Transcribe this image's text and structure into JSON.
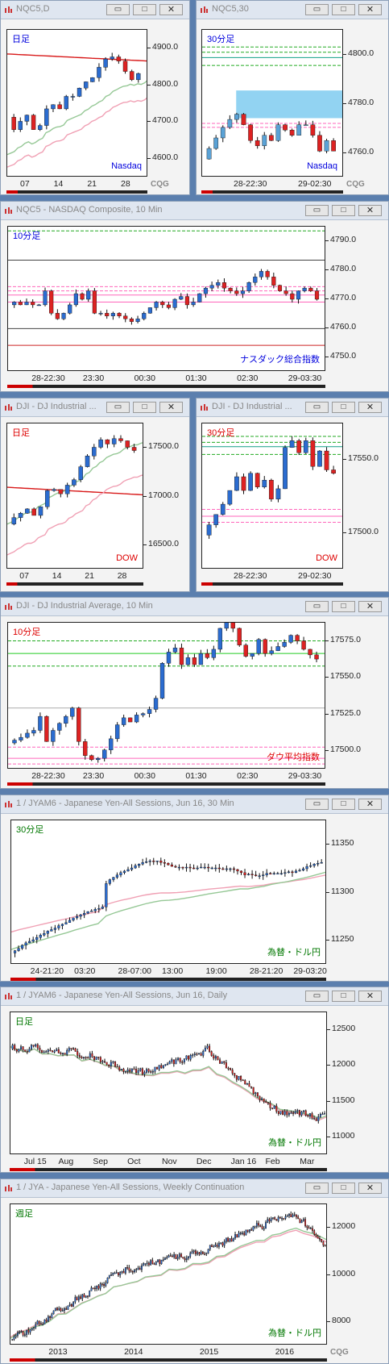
{
  "windows": [
    {
      "title": "NQC5,D",
      "period_label": "日足",
      "period_color": "#0000dd",
      "symbol_label": "Nasdaq",
      "symbol_color": "#0000dd",
      "y_ticks": [
        "4900.0",
        "4800.0",
        "4700.0",
        "4600.0"
      ],
      "x_ticks": [
        "07",
        "14",
        "21",
        "28"
      ],
      "logo": "CQG",
      "chart_data": {
        "type": "candlestick",
        "timeframe": "daily",
        "yrange": [
          4565,
          4920
        ],
        "count": 20,
        "base": 4710,
        "deltas": [
          -30,
          20,
          15,
          -35,
          10,
          40,
          10,
          -10,
          30,
          0,
          20,
          15,
          10,
          25,
          20,
          5,
          -10,
          -25,
          -20,
          15
        ],
        "ma_lines": [
          {
            "color": "#d81818",
            "values": [
              4862,
              4845
            ]
          },
          {
            "color": "#96c896",
            "values": [
              4600,
              4795
            ]
          },
          {
            "color": "#f0a0b4",
            "values": [
              4560,
              4740
            ]
          }
        ]
      }
    },
    {
      "title": "NQC5,30",
      "period_label": "30分足",
      "period_color": "#0000dd",
      "symbol_label": "Nasdaq",
      "symbol_color": "#0000dd",
      "y_ticks": [
        "4800.0",
        "4780.0",
        "4760.0"
      ],
      "x_ticks": [
        "28-22:30",
        "29-02:30"
      ],
      "logo": "CQG",
      "chart_data": {
        "type": "candlestick",
        "timeframe": "30min",
        "yrange": [
          4752,
          4808
        ],
        "count": 19,
        "base": 4759,
        "deltas": [
          4,
          4,
          4,
          3,
          2,
          -4,
          -6,
          -2,
          4,
          -2,
          6,
          -2,
          -2,
          4,
          0,
          -4,
          -6,
          4,
          -4
        ],
        "hlines": [
          {
            "color": "#22aa22",
            "dash": true,
            "values": [
              4801.5,
              4799.5,
              4794.5
            ]
          },
          {
            "color": "#13a088",
            "dash": false,
            "values": [
              4797.5
            ]
          },
          {
            "color": "#ff66bb",
            "dash": true,
            "values": [
              4772.5,
              4771
            ]
          }
        ],
        "highlight": {
          "color": "#7fcbf0",
          "from": [
            0.24,
            1.0
          ],
          "yrange": [
            4774.5,
            4785
          ]
        }
      }
    },
    {
      "title": "NQC5 - NASDAQ Composite, 10 Min",
      "period_label": "10分足",
      "period_color": "#0000dd",
      "symbol_label": "ナスダック総合指数",
      "symbol_color": "#0000dd",
      "y_ticks": [
        "4790.0",
        "4780.0",
        "4770.0",
        "4760.0",
        "4750.0"
      ],
      "x_ticks": [
        "28-22:30",
        "23:30",
        "00:30",
        "01:30",
        "02:30",
        "29-03:30"
      ],
      "chart_data": {
        "type": "candlestick",
        "timeframe": "10min",
        "yrange": [
          4745,
          4797
        ],
        "count": 50,
        "base": 4769,
        "deltas": [
          1,
          -1,
          1,
          -1,
          0,
          5,
          -8,
          -2,
          2,
          3,
          4,
          -2,
          3,
          -8,
          0,
          -1,
          1,
          -1,
          -1,
          -1,
          1,
          2,
          2,
          2,
          -1,
          -1,
          3,
          1,
          -3,
          1,
          3,
          2,
          1,
          1,
          -2,
          -1,
          -1,
          1,
          3,
          2,
          2,
          -2,
          -3,
          -2,
          -1,
          -2,
          3,
          1,
          -1,
          -3
        ],
        "hlines": [
          {
            "color": "#22aa22",
            "dash": true,
            "values": [
              4795.5
            ]
          },
          {
            "color": "#ff66bb",
            "dash": true,
            "values": [
              4775.5,
              4774
            ]
          },
          {
            "color": "#ff66bb",
            "dash": false,
            "values": [
              4772.5,
              4770
            ]
          },
          {
            "color": "#444444",
            "dash": false,
            "values": [
              4785,
              4760.5
            ]
          },
          {
            "color": "#cc2222",
            "dash": false,
            "values": [
              4754.5
            ]
          }
        ]
      }
    },
    {
      "title": "DJI - DJ Industrial ...",
      "period_label": "日足",
      "period_color": "#dd0000",
      "symbol_label": "DOW",
      "symbol_color": "#dd0000",
      "y_ticks": [
        "17500.0",
        "17000.0",
        "16500.0"
      ],
      "x_ticks": [
        "07",
        "14",
        "21",
        "28"
      ],
      "chart_data": {
        "type": "candlestick",
        "timeframe": "daily",
        "yrange": [
          16400,
          17750
        ],
        "count": 19,
        "base": 16820,
        "deltas": [
          60,
          40,
          40,
          -60,
          80,
          150,
          10,
          -40,
          80,
          50,
          120,
          100,
          80,
          70,
          -40,
          50,
          -20,
          -60,
          -30
        ],
        "ma_lines": [
          {
            "color": "#d81818",
            "values": [
              17160,
              17090
            ]
          },
          {
            "color": "#96c896",
            "values": [
              16800,
              17600
            ]
          },
          {
            "color": "#f0a0b4",
            "values": [
              16420,
              17200
            ]
          }
        ]
      }
    },
    {
      "title": "DJI - DJ Industrial ...",
      "period_label": "30分足",
      "period_color": "#dd0000",
      "symbol_label": "DOW",
      "symbol_color": "#dd0000",
      "y_ticks": [
        "17550.0",
        "17500.0"
      ],
      "x_ticks": [
        "28-22:30",
        "29-02:30"
      ],
      "chart_data": {
        "type": "candlestick",
        "timeframe": "30min",
        "yrange": [
          17425,
          17595
        ],
        "count": 19,
        "base": 17465,
        "deltas": [
          12,
          12,
          12,
          16,
          16,
          -16,
          20,
          -16,
          8,
          -22,
          12,
          48,
          8,
          -14,
          14,
          -30,
          18,
          -22,
          -4
        ],
        "hlines": [
          {
            "color": "#22aa22",
            "dash": true,
            "values": [
              17580,
              17573,
              17559
            ]
          },
          {
            "color": "#13a088",
            "dash": false,
            "values": [
              17568
            ]
          },
          {
            "color": "#ff66bb",
            "dash": true,
            "values": [
              17495,
              17480
            ]
          },
          {
            "color": "#ff66bb",
            "dash": false,
            "values": [
              17487
            ]
          }
        ]
      }
    },
    {
      "title": "DJI - DJ Industrial Average, 10 Min",
      "period_label": "10分足",
      "period_color": "#dd0000",
      "symbol_label": "ダウ平均指数",
      "symbol_color": "#dd0000",
      "y_ticks": [
        "17575.0",
        "17550.0",
        "17525.0",
        "17500.0"
      ],
      "x_ticks": [
        "28-22:30",
        "23:30",
        "00:30",
        "01:30",
        "02:30",
        "29-03:30"
      ],
      "chart_data": {
        "type": "candlestick",
        "timeframe": "10min",
        "yrange": [
          17483,
          17588
        ],
        "count": 48,
        "base": 17502,
        "deltas": [
          2,
          2,
          3,
          2,
          10,
          -18,
          8,
          5,
          5,
          6,
          -24,
          -10,
          -3,
          1,
          6,
          8,
          10,
          5,
          -3,
          5,
          1,
          3,
          8,
          25,
          8,
          3,
          -12,
          5,
          -5,
          8,
          -3,
          6,
          15,
          8,
          -8,
          -12,
          -8,
          2,
          10,
          -10,
          2,
          3,
          3,
          5,
          -4,
          -6,
          -4,
          -3
        ],
        "hlines": [
          {
            "color": "#22aa22",
            "dash": true,
            "values": [
              17575,
              17557
            ]
          },
          {
            "color": "#22cc22",
            "dash": false,
            "values": [
              17566
            ]
          },
          {
            "color": "#aaaaaa",
            "dash": false,
            "values": [
              17527
            ]
          },
          {
            "color": "#ff66bb",
            "dash": true,
            "values": [
              17499,
              17487
            ]
          },
          {
            "color": "#ff66bb",
            "dash": false,
            "values": [
              17491
            ]
          }
        ]
      }
    },
    {
      "title": "1 / JYAM6 - Japanese Yen-All Sessions, Jun 16, 30 Min",
      "period_label": "30分足",
      "period_color": "#007700",
      "symbol_label": "為替・ドル円",
      "symbol_color": "#007700",
      "y_ticks": [
        "11350",
        "11300",
        "11250"
      ],
      "x_ticks": [
        "24-21:20",
        "03:20",
        "28-07:00",
        "13:00",
        "19:00",
        "28-21:20",
        "29-03:20"
      ],
      "chart_data": {
        "type": "candlestick",
        "timeframe": "30min",
        "yrange": [
          11200,
          11385
        ],
        "count": 85,
        "base": 11215,
        "deltas": [
          3,
          3,
          4,
          3,
          2,
          2,
          3,
          3,
          2,
          3,
          2,
          2,
          3,
          2,
          2,
          3,
          3,
          2,
          2,
          2,
          2,
          1,
          2,
          1,
          2,
          30,
          5,
          3,
          3,
          3,
          2,
          2,
          2,
          3,
          2,
          2,
          1,
          1,
          -1,
          1,
          -2,
          -1,
          -2,
          -2,
          -1,
          0,
          -1,
          1,
          -1,
          -1,
          1,
          1,
          0,
          -1,
          0,
          0,
          -1,
          -1,
          1,
          0,
          -1,
          -2,
          -2,
          -3,
          1,
          -1,
          -1,
          0,
          1,
          2,
          -1,
          1,
          0,
          0,
          1,
          1,
          -1,
          2,
          1,
          2,
          3,
          1,
          2,
          1,
          1
        ],
        "ma_lines": [
          {
            "color": "#f0a0b4",
            "values": [
              11250,
              11310
            ]
          },
          {
            "color": "#96c896",
            "values": [
              11220,
              11315
            ]
          }
        ]
      }
    },
    {
      "title": "1 / JYAM6 - Japanese Yen-All Sessions, Jun 16, Daily",
      "period_label": "日足",
      "period_color": "#007700",
      "symbol_label": "為替・ドル円",
      "symbol_color": "#007700",
      "y_ticks": [
        "12500",
        "12000",
        "11500",
        "11000"
      ],
      "x_ticks": [
        "Jul 15",
        "Aug",
        "Sep",
        "Oct",
        "Nov",
        "Dec",
        "Jan 16",
        "Feb",
        "Mar"
      ],
      "chart_data": {
        "type": "candlestick",
        "timeframe": "daily",
        "yrange": [
          10800,
          12750
        ],
        "count": 150,
        "base": 12250,
        "deltas": [],
        "ma_lines": [
          {
            "color": "#f0a0b4",
            "values": [
              12250,
              11280
            ]
          },
          {
            "color": "#96c896",
            "values": [
              12250,
              11320
            ]
          }
        ]
      }
    },
    {
      "title": "1 / JYA - Japanese Yen-All Sessions, Weekly Continuation",
      "period_label": "週足",
      "period_color": "#007700",
      "symbol_label": "為替・ドル円",
      "symbol_color": "#007700",
      "y_ticks": [
        "12000",
        "10000",
        "8000"
      ],
      "x_ticks": [
        "2013",
        "2014",
        "2015",
        "2016"
      ],
      "logo": "CQG",
      "chart_data": {
        "type": "candlestick",
        "timeframe": "weekly",
        "yrange": [
          7600,
          12800
        ],
        "count": 175,
        "base": 7800,
        "deltas": [],
        "ma_lines": [
          {
            "color": "#f0a0b4",
            "values": [
              8000,
              11500
            ]
          },
          {
            "color": "#96c896",
            "values": [
              7900,
              11700
            ]
          }
        ]
      }
    }
  ],
  "window_buttons": {
    "minimize": "▭",
    "maximize": "□",
    "close": "✕"
  }
}
